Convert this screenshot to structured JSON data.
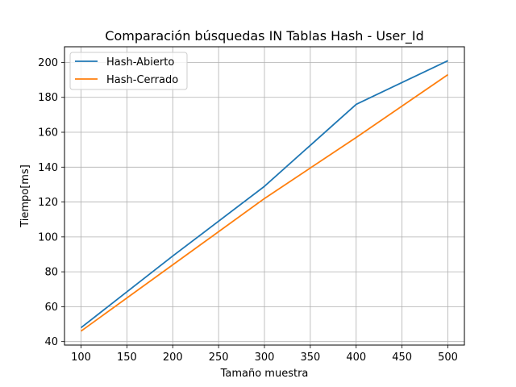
{
  "chart_data": {
    "type": "line",
    "title": "Comparación búsquedas IN Tablas Hash - User_Id",
    "xlabel": "Tamaño muestra",
    "ylabel": "Tiempo[ms]",
    "x": [
      100,
      200,
      300,
      400,
      500
    ],
    "xlim": [
      82,
      518
    ],
    "ylim": [
      38,
      209
    ],
    "xticks": [
      100,
      150,
      200,
      250,
      300,
      350,
      400,
      450,
      500
    ],
    "yticks": [
      40,
      60,
      80,
      100,
      120,
      140,
      160,
      180,
      200
    ],
    "grid": true,
    "legend_position": "upper-left",
    "series": [
      {
        "name": "Hash-Abierto",
        "color": "#1f77b4",
        "values": [
          48,
          89,
          129,
          176,
          201
        ]
      },
      {
        "name": "Hash-Cerrado",
        "color": "#ff7f0e",
        "values": [
          46,
          84,
          122,
          157,
          193
        ]
      }
    ]
  }
}
